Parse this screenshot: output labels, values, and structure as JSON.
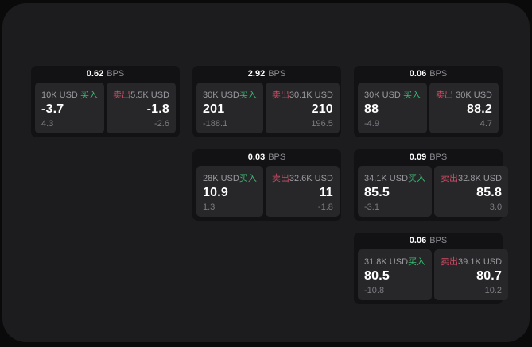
{
  "labels": {
    "bps_unit": "BPS",
    "buy": "买入",
    "sell": "卖出"
  },
  "colors": {
    "buy_green": "#3bbb72",
    "sell_red": "#d14b63",
    "page_panel_bg": "#1c1c1e",
    "card_bg": "#121214",
    "subpanel_bg": "#27272a",
    "primary_text": "#ffffff",
    "secondary_text": "#9a9a9f"
  },
  "cards": [
    {
      "bps": "0.62",
      "buy": {
        "amount": "10K USD",
        "price": "-3.7",
        "change": "4.3"
      },
      "sell": {
        "amount": "5.5K USD",
        "price": "-1.8",
        "change": "-2.6"
      }
    },
    {
      "bps": "2.92",
      "buy": {
        "amount": "30K USD",
        "price": "201",
        "change": "-188.1"
      },
      "sell": {
        "amount": "30.1K USD",
        "price": "210",
        "change": "196.5"
      }
    },
    {
      "bps": "0.06",
      "buy": {
        "amount": "30K USD",
        "price": "88",
        "change": "-4.9"
      },
      "sell": {
        "amount": "30K USD",
        "price": "88.2",
        "change": "4.7"
      }
    },
    {
      "bps": "0.03",
      "buy": {
        "amount": "28K USD",
        "price": "10.9",
        "change": "1.3"
      },
      "sell": {
        "amount": "32.6K USD",
        "price": "11",
        "change": "-1.8"
      }
    },
    {
      "bps": "0.09",
      "buy": {
        "amount": "34.1K USD",
        "price": "85.5",
        "change": "-3.1"
      },
      "sell": {
        "amount": "32.8K USD",
        "price": "85.8",
        "change": "3.0"
      }
    },
    {
      "bps": "0.06",
      "buy": {
        "amount": "31.8K USD",
        "price": "80.5",
        "change": "-10.8"
      },
      "sell": {
        "amount": "39.1K USD",
        "price": "80.7",
        "change": "10.2"
      }
    }
  ]
}
